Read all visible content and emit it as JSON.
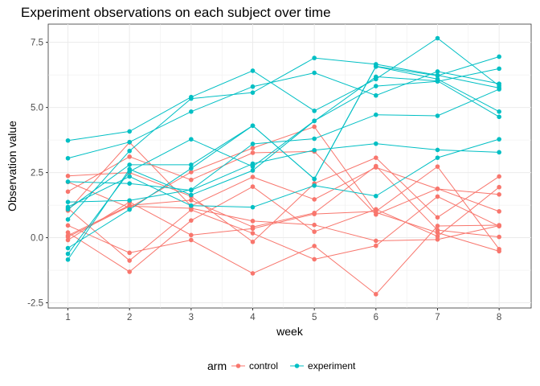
{
  "chart_data": {
    "type": "line",
    "title": "Experiment observations on each subject over time",
    "xlabel": "week",
    "ylabel": "Observation value",
    "xlim": [
      0.68,
      8.52
    ],
    "ylim": [
      -2.7,
      8.2
    ],
    "x_ticks": [
      1,
      2,
      3,
      4,
      5,
      6,
      7,
      8
    ],
    "y_ticks": [
      -2.5,
      0.0,
      2.5,
      5.0,
      7.5
    ],
    "y_tick_labels": [
      "-2.5",
      "0.0",
      "2.5",
      "5.0",
      "7.5"
    ],
    "x": [
      1,
      2,
      3,
      4,
      5,
      6,
      7,
      8
    ],
    "grid": true,
    "legend": {
      "title": "arm",
      "placement": "bottom",
      "entries": [
        {
          "label": "control",
          "color": "#F8766D"
        },
        {
          "label": "experiment",
          "color": "#00BFC4"
        }
      ]
    },
    "series": [
      {
        "arm": "control",
        "values": [
          0.2,
          -1.31,
          0.66,
          1.96,
          0.23,
          1.09,
          0.05,
          1.94
        ]
      },
      {
        "arm": "control",
        "values": [
          1.13,
          -0.88,
          1.07,
          0.17,
          -0.83,
          -0.31,
          1.58,
          0.44
        ]
      },
      {
        "arm": "control",
        "values": [
          1.77,
          3.11,
          2.22,
          3.26,
          3.31,
          0.89,
          1.88,
          1.01
        ]
      },
      {
        "arm": "control",
        "values": [
          1.04,
          3.66,
          1.22,
          2.33,
          1.47,
          2.7,
          1.87,
          1.66
        ]
      },
      {
        "arm": "control",
        "values": [
          0.47,
          -0.58,
          -0.09,
          -1.37,
          -0.32,
          -2.17,
          0.45,
          0.48
        ]
      },
      {
        "arm": "control",
        "values": [
          2.37,
          2.5,
          1.59,
          -0.16,
          2.08,
          3.07,
          0.78,
          2.35
        ]
      },
      {
        "arm": "control",
        "values": [
          0.03,
          1.21,
          1.13,
          0.64,
          0.49,
          -0.12,
          -0.07,
          0.46
        ]
      },
      {
        "arm": "control",
        "values": [
          -0.09,
          1.37,
          0.1,
          0.35,
          0.91,
          1.01,
          2.73,
          -0.44
        ]
      },
      {
        "arm": "control",
        "values": [
          0.08,
          1.24,
          1.44,
          0.41,
          0.95,
          2.75,
          0.29,
          0.03
        ]
      },
      {
        "arm": "control",
        "values": [
          2.14,
          1.15,
          2.52,
          3.44,
          4.26,
          0.97,
          0.19,
          -0.52
        ]
      },
      {
        "arm": "experiment",
        "values": [
          3.05,
          3.67,
          4.84,
          5.8,
          6.33,
          5.46,
          6.38,
          5.91
        ]
      },
      {
        "arm": "experiment",
        "values": [
          -0.84,
          2.63,
          1.64,
          2.58,
          4.48,
          6.18,
          6.02,
          4.64
        ]
      },
      {
        "arm": "experiment",
        "values": [
          2.15,
          2.08,
          1.82,
          2.84,
          3.36,
          3.61,
          3.37,
          3.28
        ]
      },
      {
        "arm": "experiment",
        "values": [
          -0.62,
          2.54,
          3.78,
          2.73,
          4.49,
          5.82,
          6.0,
          6.49
        ]
      },
      {
        "arm": "experiment",
        "values": [
          0.7,
          3.33,
          5.34,
          5.57,
          6.9,
          6.66,
          6.24,
          5.75
        ]
      },
      {
        "arm": "experiment",
        "values": [
          3.73,
          4.08,
          5.4,
          6.41,
          4.87,
          6.09,
          7.66,
          5.83
        ]
      },
      {
        "arm": "experiment",
        "values": [
          1.18,
          2.35,
          1.23,
          1.17,
          2.0,
          1.6,
          3.07,
          3.78
        ]
      },
      {
        "arm": "experiment",
        "values": [
          1.37,
          1.43,
          1.84,
          3.6,
          3.8,
          4.72,
          4.68,
          5.7
        ]
      },
      {
        "arm": "experiment",
        "values": [
          -0.4,
          1.08,
          2.66,
          4.3,
          2.26,
          6.58,
          6.22,
          6.95
        ]
      },
      {
        "arm": "experiment",
        "values": [
          1.09,
          2.8,
          2.8,
          4.3,
          2.25,
          6.57,
          6.09,
          4.84
        ]
      }
    ]
  }
}
